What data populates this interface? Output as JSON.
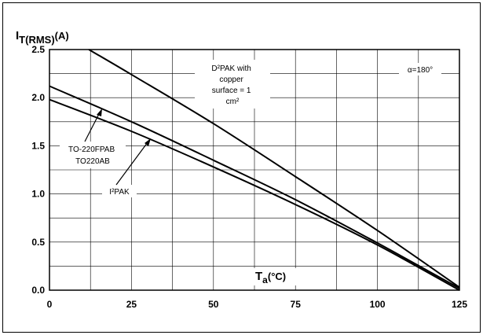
{
  "chart_data": {
    "type": "line",
    "ylabel": {
      "main": "I",
      "sub": "T(RMS)",
      "unit": "(A)"
    },
    "xlabel": {
      "main": "T",
      "sub": "a",
      "unit": "(°C)"
    },
    "xlim": [
      0,
      125
    ],
    "ylim": [
      0,
      2.5
    ],
    "x_ticks": [
      "0",
      "25",
      "50",
      "75",
      "100",
      "125"
    ],
    "y_ticks": [
      "0.0",
      "0.5",
      "1.0",
      "1.5",
      "2.0",
      "2.5"
    ],
    "grid": true,
    "series": [
      {
        "name": "D²PAK with copper surface = 1 cm²",
        "x": [
          12,
          25,
          50,
          75,
          100,
          125
        ],
        "y": [
          2.5,
          2.24,
          1.73,
          1.18,
          0.62,
          0.03
        ]
      },
      {
        "name": "TO-220FPAB TO220AB",
        "x": [
          0,
          25,
          50,
          75,
          100,
          125
        ],
        "y": [
          2.12,
          1.75,
          1.35,
          0.94,
          0.49,
          0.02
        ]
      },
      {
        "name": "I²PAK",
        "x": [
          0,
          25,
          50,
          75,
          100,
          125
        ],
        "y": [
          1.98,
          1.65,
          1.28,
          0.89,
          0.47,
          0.0
        ]
      }
    ],
    "annotations": {
      "d2pak": [
        "D²PAK with",
        "copper",
        "surface = 1",
        "cm²"
      ],
      "alpha": "α=180°",
      "to220": [
        "TO-220FPAB",
        "TO220AB"
      ],
      "i2pak": "I²PAK"
    }
  }
}
